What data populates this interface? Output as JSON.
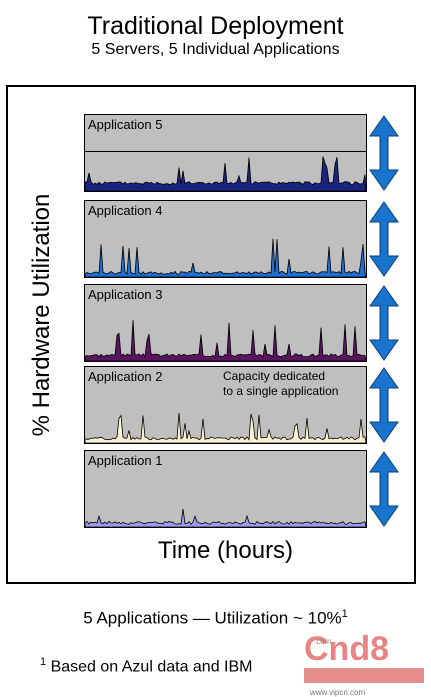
{
  "title": "Traditional Deployment",
  "subtitle": "5 Servers, 5 Individual Applications",
  "y_axis_label": "% Hardware Utilization",
  "x_axis_label": "Time (hours)",
  "panels": [
    {
      "label": "Application 5",
      "color": "#1a237e",
      "base": 0.24,
      "spikes": 0.38,
      "seed": 5,
      "line_ratio": 0.52
    },
    {
      "label": "Application 4",
      "color": "#1e6fd0",
      "base": 0.1,
      "spikes": 0.48,
      "seed": 4
    },
    {
      "label": "Application 3",
      "color": "#5a1560",
      "base": 0.16,
      "spikes": 0.5,
      "seed": 3
    },
    {
      "label": "Application 2",
      "color": "#f8f4d2",
      "base": 0.12,
      "spikes": 0.36,
      "seed": 2,
      "note_line1": "Capacity dedicated",
      "note_line2": "to a single application"
    },
    {
      "label": "Application 1",
      "color": "#9c9cf0",
      "base": 0.1,
      "spikes": 0.34,
      "seed": 1
    }
  ],
  "arrow_color": "#1874cd",
  "footer_text": "5 Applications — Utilization ~ 10%",
  "footer_sup": "1",
  "footnote_marker": "1",
  "footnote_text": "Based on Azul data and IBM",
  "watermark": "Cnd8 .com www.vipcn.com"
}
